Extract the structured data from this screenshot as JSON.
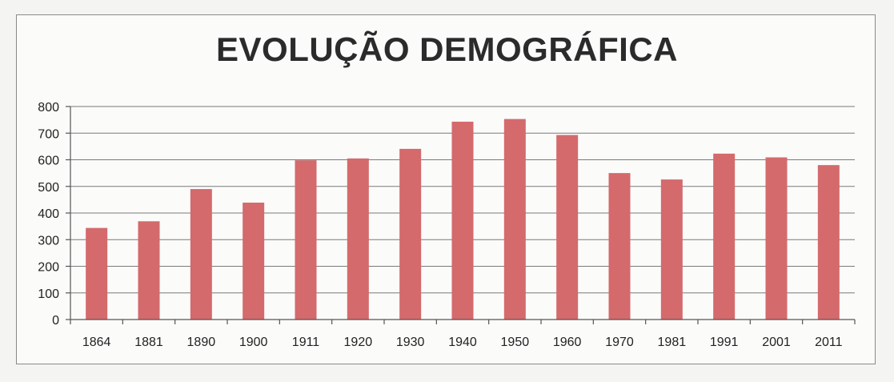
{
  "chart_data": {
    "type": "bar",
    "title": "EVOLUÇÃO DEMOGRÁFICA",
    "xlabel": "",
    "ylabel": "",
    "categories": [
      "1864",
      "1881",
      "1890",
      "1900",
      "1911",
      "1920",
      "1930",
      "1940",
      "1950",
      "1960",
      "1970",
      "1981",
      "1991",
      "2001",
      "2011"
    ],
    "series": [
      {
        "values": [
          344,
          369,
          490,
          439,
          598,
          605,
          641,
          743,
          753,
          693,
          550,
          526,
          623,
          609,
          580
        ]
      }
    ],
    "ylim": [
      0,
      800
    ],
    "yticks": [
      0,
      100,
      200,
      300,
      400,
      500,
      600,
      700,
      800
    ],
    "grid": true,
    "legend": "none",
    "colors": {
      "bar": "#d46a6c",
      "grid": "#7a7a7a"
    }
  }
}
